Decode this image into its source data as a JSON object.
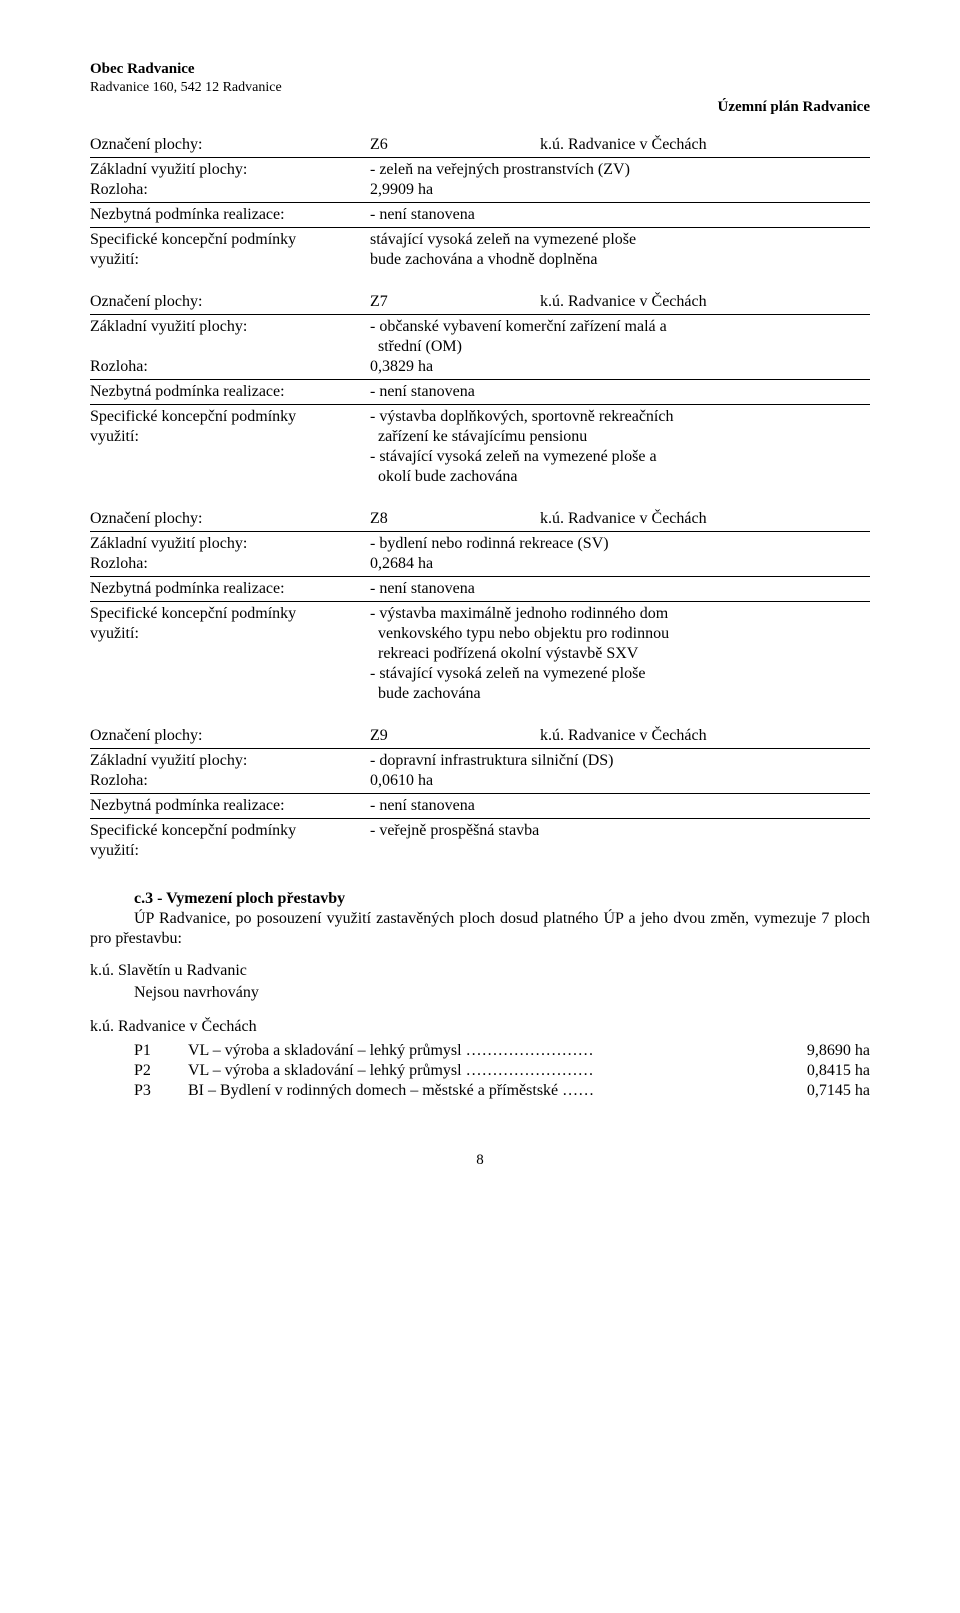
{
  "header": {
    "org": "Obec Radvanice",
    "addr": "Radvanice 160, 542 12 Radvanice",
    "doc_title": "Územní plán Radvanice"
  },
  "labels": {
    "oznaceni": "Označení plochy:",
    "zakladni": "Základní využití plochy:",
    "rozloha": "Rozloha:",
    "nezbytna": "Nezbytná podmínka realizace:",
    "specificke1": "Specifické koncepční podmínky",
    "specificke2": "využití:",
    "ku_suffix": "k.ú. Radvanice v Čechách",
    "not_set": "- není stanovena"
  },
  "blocks": [
    {
      "code": "Z6",
      "basic": "- zeleň na veřejných prostranstvích (ZV)",
      "area": "2,9909 ha",
      "spec": [
        "stávající vysoká zeleň na vymezené ploše",
        "bude zachována a vhodně doplněna"
      ]
    },
    {
      "code": "Z7",
      "basic_lines": [
        "- občanské vybavení komerční zařízení malá a",
        "  střední (OM)"
      ],
      "area": "0,3829 ha",
      "spec": [
        "- výstavba doplňkových, sportovně rekreačních",
        "  zařízení ke stávajícímu pensionu",
        "- stávající vysoká zeleň na vymezené ploše a",
        "  okolí bude zachována"
      ]
    },
    {
      "code": "Z8",
      "basic": "- bydlení nebo rodinná rekreace (SV)",
      "area": "0,2684 ha",
      "spec": [
        "- výstavba maximálně jednoho rodinného dom",
        "  venkovského typu nebo objektu pro rodinnou",
        "  rekreaci podřízená okolní výstavbě SXV",
        "- stávající vysoká zeleň na vymezené ploše",
        "  bude zachována"
      ]
    },
    {
      "code": "Z9",
      "basic": "- dopravní infrastruktura silniční (DS)",
      "area": "0,0610 ha",
      "spec": [
        "- veřejně prospěšná stavba"
      ]
    }
  ],
  "section_c3": {
    "title": "c.3 - Vymezení ploch přestavby",
    "para": "ÚP Radvanice, po posouzení využití zastavěných ploch dosud platného ÚP a jeho dvou změn, vymezuje 7 ploch pro přestavbu:"
  },
  "ku1": {
    "title": "k.ú. Slavětín u Radvanic",
    "line": "Nejsou navrhovány"
  },
  "ku2": {
    "title": "k.ú. Radvanice v Čechách",
    "items": [
      {
        "code": "P1",
        "desc": "VL – výroba a skladování – lehký průmysl ……………………",
        "area": "9,8690 ha"
      },
      {
        "code": "P2",
        "desc": "VL – výroba a skladování – lehký průmysl ……………………",
        "area": "0,8415 ha"
      },
      {
        "code": "P3",
        "desc": "BI – Bydlení v rodinných domech – městské a příměstské ……",
        "area": "0,7145 ha"
      }
    ]
  },
  "page_number": "8"
}
